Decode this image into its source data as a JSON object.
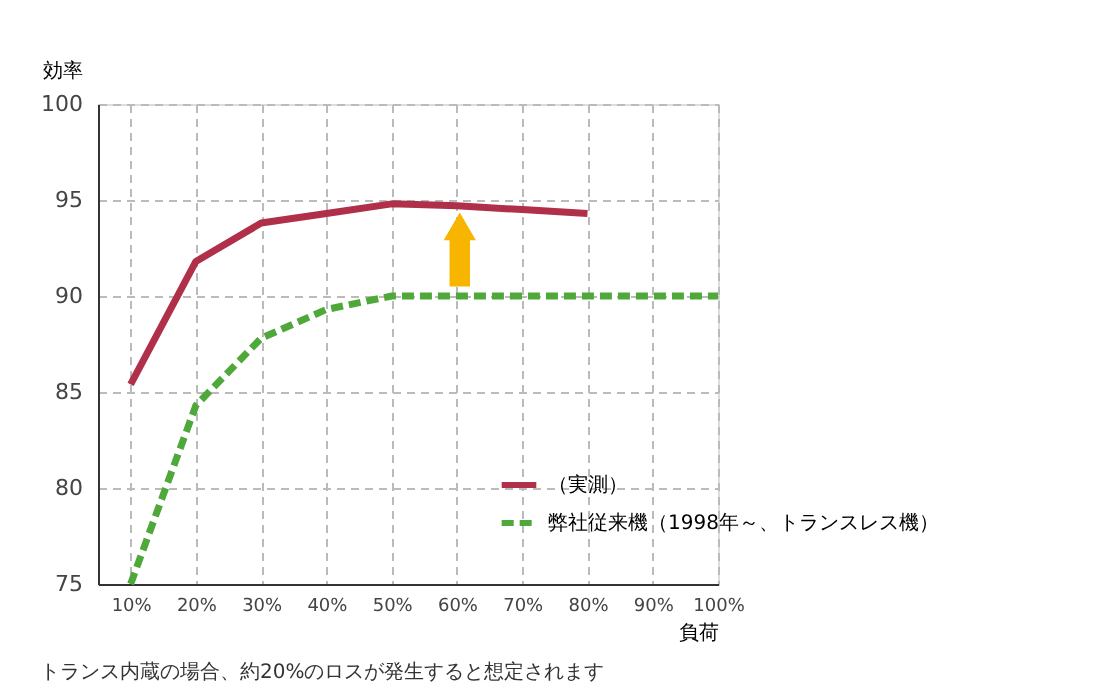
{
  "chart_data": {
    "type": "line",
    "ylabel": "効率",
    "xlabel": "負荷",
    "x": [
      10,
      20,
      30,
      40,
      50,
      60,
      70,
      80,
      90,
      100
    ],
    "series": [
      {
        "name": "（実測）",
        "color": "#b0304a",
        "line_style": "solid",
        "values": [
          85.4,
          91.8,
          93.8,
          94.3,
          94.8,
          94.7,
          94.5,
          94.3,
          null,
          null
        ]
      },
      {
        "name": "弊社従来機（1998年～、トランスレス機）",
        "color": "#4fa83a",
        "line_style": "dashed",
        "values": [
          75,
          84.3,
          87.8,
          89.3,
          90,
          90,
          90,
          90,
          90,
          90
        ]
      }
    ],
    "xlim": [
      5,
      100
    ],
    "xticks": [
      {
        "value": 10,
        "label": "10%"
      },
      {
        "value": 20,
        "label": "20%"
      },
      {
        "value": 30,
        "label": "30%"
      },
      {
        "value": 40,
        "label": "40%"
      },
      {
        "value": 50,
        "label": "50%"
      },
      {
        "value": 60,
        "label": "60%"
      },
      {
        "value": 70,
        "label": "70%"
      },
      {
        "value": 80,
        "label": "80%"
      },
      {
        "value": 90,
        "label": "90%"
      },
      {
        "value": 100,
        "label": "100%"
      }
    ],
    "ylim": [
      75,
      100
    ],
    "yticks": [
      75,
      80,
      85,
      90,
      95,
      100
    ],
    "grid": true,
    "marker": "none",
    "legend": "bottom right",
    "annotations": [
      "トランス内蔵の場合、約20%のロスが発生すると想定されます"
    ]
  }
}
